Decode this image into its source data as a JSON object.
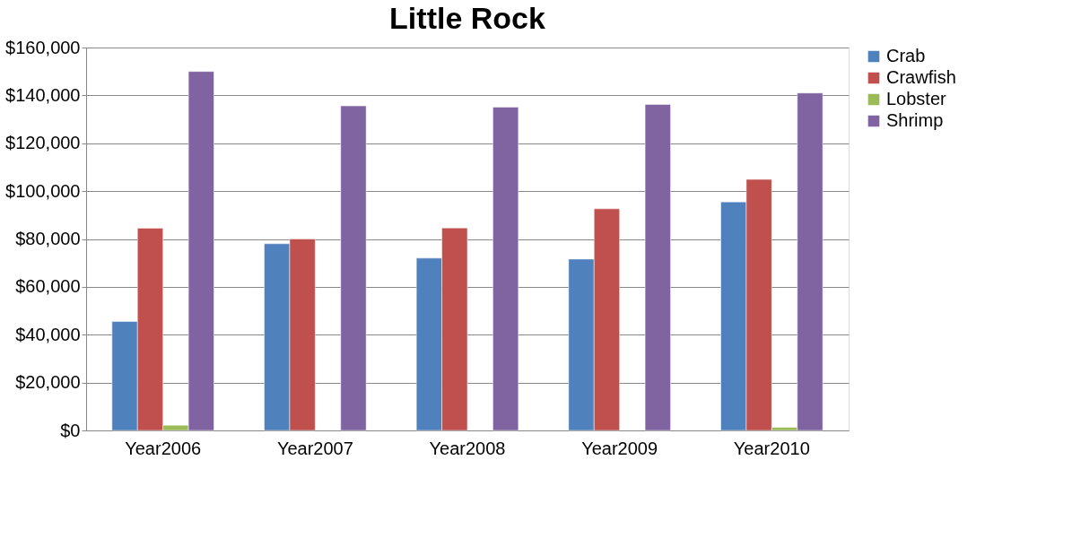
{
  "chart_data": {
    "type": "bar",
    "title": "Little Rock",
    "categories": [
      "Year2006",
      "Year2007",
      "Year2008",
      "Year2009",
      "Year2010"
    ],
    "series": [
      {
        "name": "Crab",
        "color": "#4f81bd",
        "values": [
          45500,
          78000,
          72000,
          71600,
          95500
        ]
      },
      {
        "name": "Crawfish",
        "color": "#c0504d",
        "values": [
          84500,
          80000,
          84600,
          92600,
          104900
        ]
      },
      {
        "name": "Lobster",
        "color": "#9bbb59",
        "values": [
          2200,
          null,
          null,
          null,
          1300
        ]
      },
      {
        "name": "Shrimp",
        "color": "#8064a2",
        "values": [
          150000,
          135600,
          135100,
          136200,
          141000
        ]
      }
    ],
    "ylim": [
      0,
      160000
    ],
    "yticks": [
      {
        "value": 0,
        "label": "$0"
      },
      {
        "value": 20000,
        "label": "$20,000"
      },
      {
        "value": 40000,
        "label": "$40,000"
      },
      {
        "value": 60000,
        "label": "$60,000"
      },
      {
        "value": 80000,
        "label": "$80,000"
      },
      {
        "value": 100000,
        "label": "$100,000"
      },
      {
        "value": 120000,
        "label": "$120,000"
      },
      {
        "value": 140000,
        "label": "$140,000"
      },
      {
        "value": 160000,
        "label": "$160,000"
      }
    ],
    "grid": "y",
    "legend": "right"
  }
}
